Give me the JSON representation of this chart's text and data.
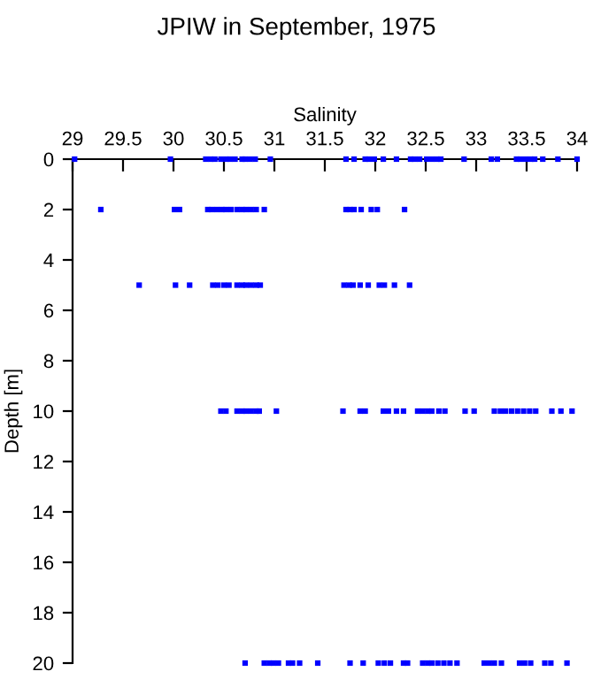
{
  "chart_data": {
    "type": "scatter",
    "title": "JPIW in September, 1975",
    "xlabel": "Salinity",
    "ylabel": "Depth [m]",
    "xlim": [
      29,
      34
    ],
    "xticks": [
      29,
      29.5,
      30,
      30.5,
      31,
      31.5,
      32,
      32.5,
      33,
      33.5,
      34
    ],
    "ylim": [
      20,
      0
    ],
    "yticks": [
      0,
      2,
      4,
      6,
      8,
      10,
      12,
      14,
      16,
      18,
      20
    ],
    "grid": false,
    "marker": "square",
    "series": [
      {
        "color": "#0000ff",
        "x": [
          29.02,
          29.97,
          30.32,
          30.37,
          30.41,
          30.47,
          30.52,
          30.56,
          30.61,
          30.68,
          30.71,
          30.76,
          30.81,
          30.96,
          31.71,
          31.79,
          31.9,
          31.94,
          31.99,
          32.08,
          32.21,
          32.35,
          32.39,
          32.44,
          32.51,
          32.56,
          32.61,
          32.65,
          32.88,
          33.15,
          33.21,
          33.4,
          33.44,
          33.49,
          33.54,
          33.58,
          33.66,
          33.81,
          34.0,
          29.28,
          30.01,
          30.06,
          30.34,
          30.38,
          30.43,
          30.48,
          30.52,
          30.57,
          30.63,
          30.68,
          30.72,
          30.77,
          30.82,
          30.9,
          31.71,
          31.75,
          31.79,
          31.86,
          31.96,
          32.02,
          32.29,
          29.66,
          30.02,
          30.16,
          30.39,
          30.44,
          30.5,
          30.55,
          30.63,
          30.68,
          30.72,
          30.77,
          30.82,
          30.86,
          31.69,
          31.74,
          31.78,
          31.85,
          31.93,
          32.04,
          32.09,
          32.19,
          32.34,
          30.47,
          30.52,
          30.63,
          30.68,
          30.72,
          30.77,
          30.82,
          30.85,
          31.02,
          31.68,
          31.85,
          31.9,
          32.08,
          32.13,
          32.21,
          32.28,
          32.42,
          32.47,
          32.52,
          32.56,
          32.63,
          32.69,
          32.89,
          32.98,
          33.18,
          33.24,
          33.29,
          33.35,
          33.41,
          33.47,
          33.53,
          33.59,
          33.75,
          33.84,
          33.95,
          30.71,
          30.9,
          30.95,
          30.99,
          31.04,
          31.14,
          31.18,
          31.25,
          31.43,
          31.75,
          31.88,
          32.03,
          32.09,
          32.15,
          32.28,
          32.32,
          32.47,
          32.52,
          32.56,
          32.62,
          32.68,
          32.74,
          32.81,
          33.08,
          33.13,
          33.18,
          33.25,
          33.43,
          33.48,
          33.54,
          33.68,
          33.74,
          33.9
        ],
        "values": [
          0,
          0,
          0,
          0,
          0,
          0,
          0,
          0,
          0,
          0,
          0,
          0,
          0,
          0,
          0,
          0,
          0,
          0,
          0,
          0,
          0,
          0,
          0,
          0,
          0,
          0,
          0,
          0,
          0,
          0,
          0,
          0,
          0,
          0,
          0,
          0,
          0,
          0,
          0,
          2,
          2,
          2,
          2,
          2,
          2,
          2,
          2,
          2,
          2,
          2,
          2,
          2,
          2,
          2,
          2,
          2,
          2,
          2,
          2,
          2,
          2,
          5,
          5,
          5,
          5,
          5,
          5,
          5,
          5,
          5,
          5,
          5,
          5,
          5,
          5,
          5,
          5,
          5,
          5,
          5,
          5,
          5,
          5,
          10,
          10,
          10,
          10,
          10,
          10,
          10,
          10,
          10,
          10,
          10,
          10,
          10,
          10,
          10,
          10,
          10,
          10,
          10,
          10,
          10,
          10,
          10,
          10,
          10,
          10,
          10,
          10,
          10,
          10,
          10,
          10,
          10,
          10,
          10,
          20,
          20,
          20,
          20,
          20,
          20,
          20,
          20,
          20,
          20,
          20,
          20,
          20,
          20,
          20,
          20,
          20,
          20,
          20,
          20,
          20,
          20,
          20,
          20,
          20,
          20,
          20,
          20,
          20,
          20,
          20,
          20,
          20
        ]
      }
    ]
  }
}
